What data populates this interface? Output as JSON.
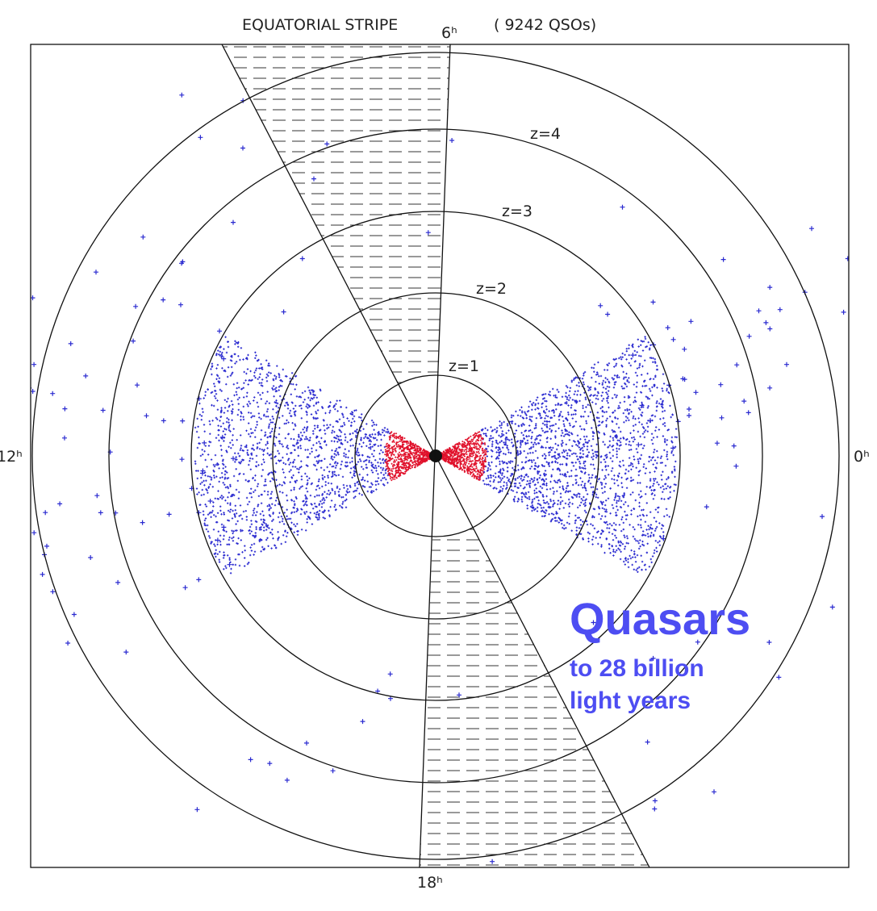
{
  "title": "EQUATORIAL STRIPE",
  "count_label": "( 9242 QSOs)",
  "hour_labels": {
    "top": "6ʰ",
    "left": "12ʰ",
    "right": "0ʰ",
    "bottom": "18ʰ"
  },
  "rings": [
    "z=1",
    "z=2",
    "z=3",
    "z=4"
  ],
  "callout": {
    "heading": "Quasars",
    "lines": [
      "to 28 billion",
      "light years"
    ]
  }
}
